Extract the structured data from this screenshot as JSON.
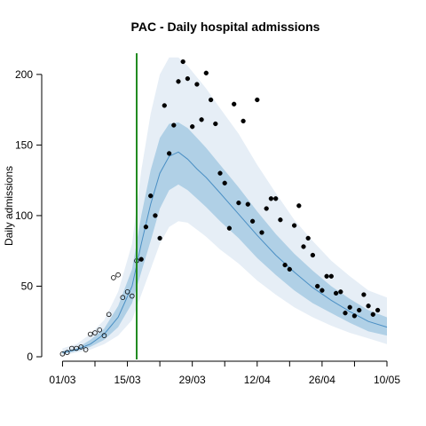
{
  "chart_data": {
    "type": "line",
    "title": "PAC - Daily hospital admissions",
    "xlabel": "",
    "ylabel": "Daily admissions",
    "x_ticks": [
      "01/03",
      "15/03",
      "29/03",
      "12/04",
      "26/04",
      "10/05"
    ],
    "y_ticks": [
      0,
      50,
      100,
      150,
      200
    ],
    "xlim": [
      "2020-02-28",
      "2020-05-10"
    ],
    "ylim": [
      0,
      215
    ],
    "grid": false,
    "intervention_date": "2020-03-17",
    "intervention_color": "#228B22",
    "band_outer_color": "#e6eef6",
    "band_inner_color": "#b0d0e6",
    "median_color": "#4a8fc4",
    "series": [
      {
        "kind": "model",
        "dates": [
          "2020-03-01",
          "2020-03-04",
          "2020-03-07",
          "2020-03-10",
          "2020-03-13",
          "2020-03-16",
          "2020-03-18",
          "2020-03-20",
          "2020-03-22",
          "2020-03-24",
          "2020-03-26",
          "2020-03-28",
          "2020-03-30",
          "2020-04-01",
          "2020-04-04",
          "2020-04-08",
          "2020-04-12",
          "2020-04-16",
          "2020-04-20",
          "2020-04-24",
          "2020-04-28",
          "2020-05-02",
          "2020-05-06",
          "2020-05-10"
        ],
        "median": [
          3,
          5,
          9,
          16,
          28,
          50,
          80,
          108,
          130,
          142,
          145,
          140,
          133,
          127,
          116,
          101,
          86,
          72,
          60,
          49,
          40,
          32,
          25,
          21
        ],
        "inner_low": [
          2,
          4,
          7,
          12,
          21,
          38,
          60,
          82,
          105,
          118,
          122,
          118,
          112,
          106,
          96,
          84,
          70,
          58,
          47,
          38,
          31,
          24,
          18,
          15
        ],
        "inner_high": [
          4,
          6,
          12,
          20,
          36,
          62,
          100,
          132,
          155,
          165,
          166,
          162,
          155,
          148,
          136,
          120,
          103,
          87,
          73,
          61,
          50,
          41,
          33,
          28
        ],
        "outer_low": [
          1,
          3,
          5,
          9,
          15,
          26,
          44,
          62,
          80,
          92,
          96,
          95,
          90,
          85,
          76,
          66,
          54,
          44,
          35,
          28,
          22,
          17,
          13,
          9
        ],
        "outer_high": [
          6,
          9,
          16,
          26,
          46,
          80,
          132,
          172,
          200,
          212,
          212,
          206,
          198,
          190,
          176,
          158,
          136,
          116,
          97,
          82,
          68,
          57,
          47,
          42
        ]
      },
      {
        "kind": "observed_fit",
        "marker": "open-circle",
        "dates": [
          "2020-03-01",
          "2020-03-02",
          "2020-03-03",
          "2020-03-04",
          "2020-03-05",
          "2020-03-06",
          "2020-03-07",
          "2020-03-08",
          "2020-03-09",
          "2020-03-10",
          "2020-03-11",
          "2020-03-12",
          "2020-03-13",
          "2020-03-14",
          "2020-03-15",
          "2020-03-16",
          "2020-03-17"
        ],
        "values": [
          2,
          3,
          6,
          6,
          7,
          5,
          16,
          17,
          19,
          15,
          30,
          56,
          58,
          42,
          46,
          43,
          68
        ]
      },
      {
        "kind": "observed_holdout",
        "marker": "filled-circle",
        "dates": [
          "2020-03-18",
          "2020-03-19",
          "2020-03-20",
          "2020-03-21",
          "2020-03-22",
          "2020-03-23",
          "2020-03-24",
          "2020-03-25",
          "2020-03-26",
          "2020-03-27",
          "2020-03-28",
          "2020-03-29",
          "2020-03-30",
          "2020-03-31",
          "2020-04-01",
          "2020-04-02",
          "2020-04-03",
          "2020-04-04",
          "2020-04-05",
          "2020-04-06",
          "2020-04-07",
          "2020-04-08",
          "2020-04-09",
          "2020-04-10",
          "2020-04-11",
          "2020-04-12",
          "2020-04-13",
          "2020-04-14",
          "2020-04-15",
          "2020-04-16",
          "2020-04-17",
          "2020-04-18",
          "2020-04-19",
          "2020-04-20",
          "2020-04-21",
          "2020-04-22",
          "2020-04-23",
          "2020-04-24",
          "2020-04-25",
          "2020-04-26",
          "2020-04-27",
          "2020-04-28",
          "2020-04-29",
          "2020-04-30",
          "2020-05-01",
          "2020-05-02",
          "2020-05-03",
          "2020-05-04",
          "2020-05-05",
          "2020-05-06",
          "2020-05-07",
          "2020-05-08"
        ],
        "values": [
          69,
          92,
          114,
          100,
          84,
          178,
          144,
          164,
          195,
          209,
          197,
          163,
          193,
          168,
          201,
          182,
          165,
          130,
          123,
          91,
          179,
          109,
          167,
          108,
          96,
          182,
          88,
          105,
          112,
          112,
          97,
          65,
          62,
          93,
          107,
          78,
          84,
          72,
          50,
          47,
          57,
          57,
          45,
          46,
          31,
          35,
          29,
          33,
          44,
          36,
          30,
          33
        ]
      }
    ]
  }
}
